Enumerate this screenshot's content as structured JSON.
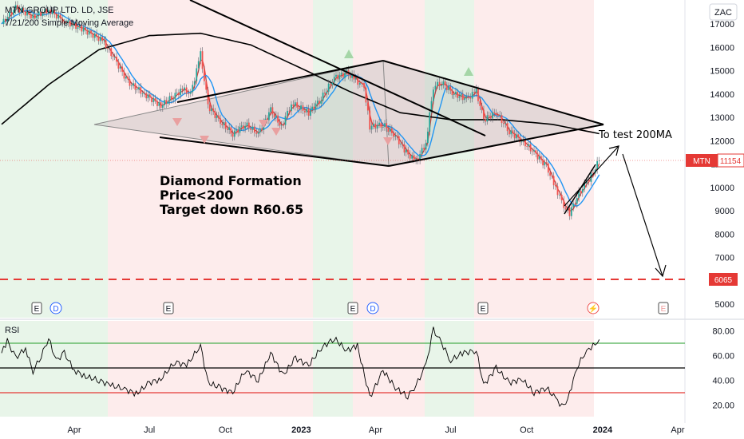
{
  "header": {
    "symbol_title": "MTN GROUP LTD. LD, JSE",
    "indicator_label": "7/21/200 Simple Moving Average",
    "currency": "ZAC"
  },
  "rsi_label": "RSI",
  "annotations": {
    "pattern_line1": "Diamond Formation",
    "pattern_line2": "Price<200",
    "pattern_line3": "Target down R60.65",
    "test_label": "To test 200MA"
  },
  "price_badge": {
    "symbol": "MTN",
    "value": "11154"
  },
  "target_badge": "6065",
  "event_markers": [
    "E",
    "D",
    "E",
    "E",
    "D",
    "E",
    "E"
  ],
  "colors": {
    "up_zone": "#e8f5e9",
    "down_zone": "#fdecec",
    "sma7": "#e53935",
    "sma21": "#2196f3",
    "sma200": "#000000",
    "target_line": "#e53935",
    "rsi_upper": "#4caf50",
    "rsi_lower": "#e53935"
  },
  "chart_data": [
    {
      "type": "line",
      "title": "MTN GROUP LTD. LD, JSE",
      "subtitle": "7/21/200 Simple Moving Average",
      "x_tick_labels": [
        "Apr",
        "Jul",
        "Oct",
        "2023",
        "Apr",
        "Jul",
        "Oct",
        "2024",
        "Apr"
      ],
      "y_tick_labels": [
        "17000",
        "16000",
        "15000",
        "14000",
        "13000",
        "12000",
        "11000",
        "10000",
        "9000",
        "8000",
        "7000",
        "6000",
        "5000"
      ],
      "ylim": [
        5000,
        17500
      ],
      "price_path": [
        [
          "2022-01-03",
          17000
        ],
        [
          "2022-01-20",
          17700
        ],
        [
          "2022-02-10",
          17300
        ],
        [
          "2022-03-01",
          17600
        ],
        [
          "2022-03-20",
          17100
        ],
        [
          "2022-04-10",
          16800
        ],
        [
          "2022-05-05",
          16300
        ],
        [
          "2022-05-20",
          15500
        ],
        [
          "2022-06-05",
          14500
        ],
        [
          "2022-06-25",
          14000
        ],
        [
          "2022-07-15",
          13500
        ],
        [
          "2022-07-30",
          13900
        ],
        [
          "2022-08-10",
          14200
        ],
        [
          "2022-08-20",
          14000
        ],
        [
          "2022-09-01",
          15700
        ],
        [
          "2022-09-10",
          13500
        ],
        [
          "2022-09-25",
          12800
        ],
        [
          "2022-10-10",
          12300
        ],
        [
          "2022-10-25",
          12700
        ],
        [
          "2022-11-10",
          12300
        ],
        [
          "2022-11-25",
          13300
        ],
        [
          "2022-12-08",
          12600
        ],
        [
          "2022-12-20",
          13600
        ],
        [
          "2023-01-10",
          13200
        ],
        [
          "2023-01-25",
          13800
        ],
        [
          "2023-02-10",
          14700
        ],
        [
          "2023-02-25",
          14900
        ],
        [
          "2023-03-08",
          14600
        ],
        [
          "2023-03-18",
          14300
        ],
        [
          "2023-03-25",
          12600
        ],
        [
          "2023-04-10",
          12700
        ],
        [
          "2023-04-25",
          12200
        ],
        [
          "2023-05-08",
          11500
        ],
        [
          "2023-05-20",
          11100
        ],
        [
          "2023-06-01",
          11900
        ],
        [
          "2023-06-10",
          14300
        ],
        [
          "2023-06-20",
          14500
        ],
        [
          "2023-07-05",
          14000
        ],
        [
          "2023-07-20",
          13800
        ],
        [
          "2023-08-01",
          14100
        ],
        [
          "2023-08-10",
          12900
        ],
        [
          "2023-08-25",
          13200
        ],
        [
          "2023-09-10",
          12400
        ],
        [
          "2023-09-25",
          12000
        ],
        [
          "2023-10-10",
          11500
        ],
        [
          "2023-10-25",
          10900
        ],
        [
          "2023-11-05",
          10000
        ],
        [
          "2023-11-15",
          9200
        ],
        [
          "2023-11-22",
          8900
        ],
        [
          "2023-12-01",
          9600
        ],
        [
          "2023-12-10",
          10100
        ],
        [
          "2023-12-18",
          10500
        ],
        [
          "2023-12-28",
          11154
        ]
      ],
      "sma200_path": [
        [
          "2022-01-03",
          12700
        ],
        [
          "2022-03-01",
          14400
        ],
        [
          "2022-05-01",
          15900
        ],
        [
          "2022-07-01",
          16500
        ],
        [
          "2022-09-01",
          16600
        ],
        [
          "2022-11-01",
          16100
        ],
        [
          "2023-01-01",
          15100
        ],
        [
          "2023-03-01",
          14100
        ],
        [
          "2023-05-01",
          13200
        ],
        [
          "2023-07-01",
          12900
        ],
        [
          "2023-09-01",
          12900
        ],
        [
          "2023-11-01",
          12700
        ],
        [
          "2023-12-28",
          12300
        ]
      ],
      "last_price": 11154,
      "target_level": 6065,
      "pattern": "Diamond Formation",
      "series": [
        {
          "name": "MTN",
          "values": [
            11154
          ]
        }
      ]
    },
    {
      "type": "line",
      "title": "RSI",
      "y_tick_labels": [
        "80.00",
        "60.00",
        "40.00",
        "20.00"
      ],
      "ylim": [
        15,
        85
      ],
      "upper_band": 70,
      "lower_band": 30,
      "mid_line": 50,
      "rsi_path": [
        [
          "2022-01-03",
          62
        ],
        [
          "2022-01-10",
          72
        ],
        [
          "2022-01-20",
          58
        ],
        [
          "2022-02-01",
          66
        ],
        [
          "2022-02-10",
          47
        ],
        [
          "2022-02-20",
          60
        ],
        [
          "2022-03-01",
          74
        ],
        [
          "2022-03-10",
          56
        ],
        [
          "2022-03-20",
          62
        ],
        [
          "2022-04-01",
          48
        ],
        [
          "2022-04-15",
          43
        ],
        [
          "2022-05-01",
          40
        ],
        [
          "2022-05-15",
          36
        ],
        [
          "2022-06-01",
          33
        ],
        [
          "2022-06-15",
          29
        ],
        [
          "2022-07-01",
          38
        ],
        [
          "2022-07-15",
          41
        ],
        [
          "2022-08-01",
          55
        ],
        [
          "2022-08-15",
          52
        ],
        [
          "2022-09-01",
          68
        ],
        [
          "2022-09-10",
          38
        ],
        [
          "2022-09-25",
          34
        ],
        [
          "2022-10-10",
          30
        ],
        [
          "2022-10-25",
          48
        ],
        [
          "2022-11-10",
          40
        ],
        [
          "2022-11-25",
          62
        ],
        [
          "2022-12-10",
          44
        ],
        [
          "2022-12-25",
          58
        ],
        [
          "2023-01-10",
          52
        ],
        [
          "2023-01-25",
          66
        ],
        [
          "2023-02-10",
          74
        ],
        [
          "2023-02-25",
          64
        ],
        [
          "2023-03-10",
          68
        ],
        [
          "2023-03-25",
          26
        ],
        [
          "2023-04-10",
          48
        ],
        [
          "2023-04-25",
          34
        ],
        [
          "2023-05-10",
          27
        ],
        [
          "2023-05-20",
          36
        ],
        [
          "2023-06-01",
          52
        ],
        [
          "2023-06-10",
          81
        ],
        [
          "2023-06-20",
          70
        ],
        [
          "2023-07-01",
          56
        ],
        [
          "2023-07-15",
          62
        ],
        [
          "2023-08-01",
          64
        ],
        [
          "2023-08-10",
          36
        ],
        [
          "2023-08-25",
          50
        ],
        [
          "2023-09-10",
          38
        ],
        [
          "2023-09-25",
          41
        ],
        [
          "2023-10-10",
          30
        ],
        [
          "2023-10-25",
          34
        ],
        [
          "2023-11-05",
          25
        ],
        [
          "2023-11-15",
          18
        ],
        [
          "2023-11-22",
          30
        ],
        [
          "2023-12-01",
          50
        ],
        [
          "2023-12-10",
          62
        ],
        [
          "2023-12-18",
          66
        ],
        [
          "2023-12-28",
          73
        ]
      ]
    }
  ]
}
